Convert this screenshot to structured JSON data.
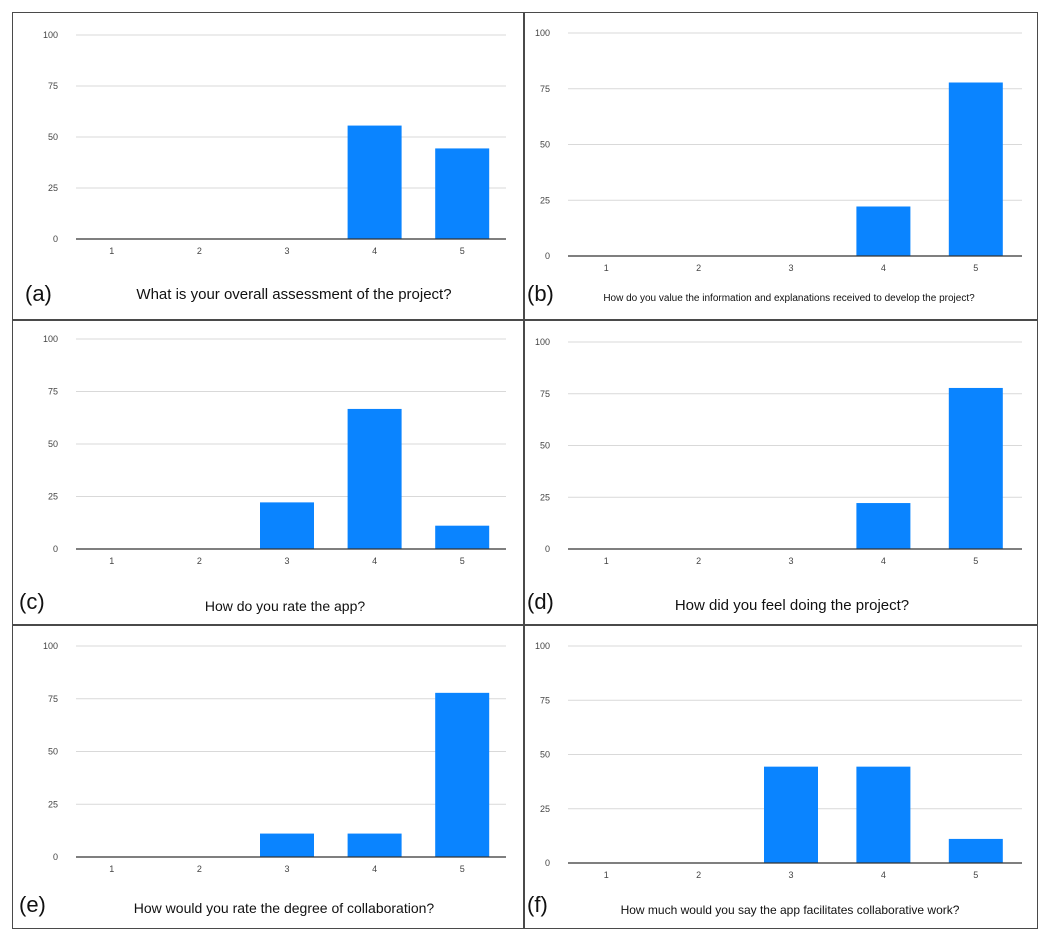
{
  "colors": {
    "bar": "#0a84ff",
    "grid": "#d9d9d9",
    "axis": "#333333",
    "border": "#4a4a4a"
  },
  "chart_data": [
    {
      "id": "a",
      "type": "bar",
      "label": "(a)",
      "title": "What is your overall assessment of the project?",
      "categories": [
        "1",
        "2",
        "3",
        "4",
        "5"
      ],
      "values": [
        0,
        0,
        0,
        55.6,
        44.4
      ],
      "ylim": [
        0,
        100
      ],
      "yticks": [
        "0",
        "25",
        "50",
        "75",
        "100"
      ],
      "grid": true
    },
    {
      "id": "b",
      "type": "bar",
      "label": "(b)",
      "title": "How do you value the information and explanations received to develop the project?",
      "categories": [
        "1",
        "2",
        "3",
        "4",
        "5"
      ],
      "values": [
        0,
        0,
        0,
        22.2,
        77.8
      ],
      "ylim": [
        0,
        100
      ],
      "yticks": [
        "0",
        "25",
        "50",
        "75",
        "100"
      ],
      "grid": true
    },
    {
      "id": "c",
      "type": "bar",
      "label": "(c)",
      "title": "How do you rate the app?",
      "categories": [
        "1",
        "2",
        "3",
        "4",
        "5"
      ],
      "values": [
        0,
        0,
        22.2,
        66.7,
        11.1
      ],
      "ylim": [
        0,
        100
      ],
      "yticks": [
        "0",
        "25",
        "50",
        "75",
        "100"
      ],
      "grid": true
    },
    {
      "id": "d",
      "type": "bar",
      "label": "(d)",
      "title": "How did you feel doing the project?",
      "categories": [
        "1",
        "2",
        "3",
        "4",
        "5"
      ],
      "values": [
        0,
        0,
        0,
        22.2,
        77.8
      ],
      "ylim": [
        0,
        100
      ],
      "yticks": [
        "0",
        "25",
        "50",
        "75",
        "100"
      ],
      "grid": true
    },
    {
      "id": "e",
      "type": "bar",
      "label": "(e)",
      "title": "How would you rate the degree of collaboration?",
      "categories": [
        "1",
        "2",
        "3",
        "4",
        "5"
      ],
      "values": [
        0,
        0,
        11.1,
        11.1,
        77.8
      ],
      "ylim": [
        0,
        100
      ],
      "yticks": [
        "0",
        "25",
        "50",
        "75",
        "100"
      ],
      "grid": true
    },
    {
      "id": "f",
      "type": "bar",
      "label": "(f)",
      "title": "How much would you say the app facilitates collaborative work?",
      "categories": [
        "1",
        "2",
        "3",
        "4",
        "5"
      ],
      "values": [
        0,
        0,
        44.4,
        44.4,
        11.1
      ],
      "ylim": [
        0,
        100
      ],
      "yticks": [
        "0",
        "25",
        "50",
        "75",
        "100"
      ],
      "grid": true
    }
  ]
}
